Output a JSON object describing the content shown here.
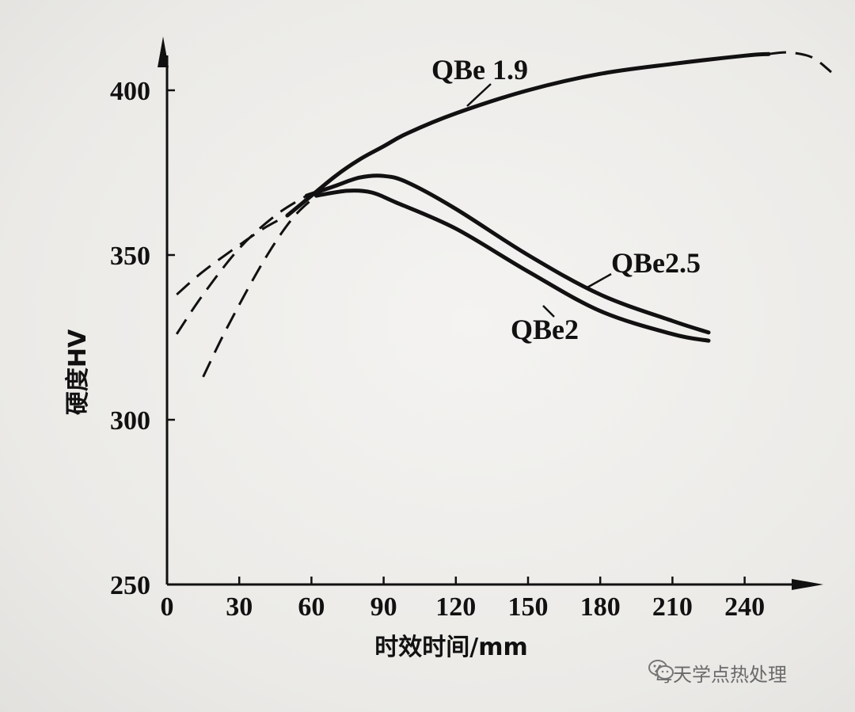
{
  "chart_data": {
    "type": "line",
    "xlabel": "时效时间/mm",
    "ylabel": "硬度HV",
    "xlim": [
      0,
      280
    ],
    "ylim": [
      250,
      415
    ],
    "x_ticks": [
      0,
      30,
      60,
      90,
      120,
      150,
      180,
      210,
      240
    ],
    "y_ticks": [
      250,
      300,
      350,
      400
    ],
    "grid": false,
    "series": [
      {
        "name": "QBe 1.9",
        "solid": [
          [
            50,
            362
          ],
          [
            60,
            368
          ],
          [
            70,
            374
          ],
          [
            80,
            379
          ],
          [
            90,
            383
          ],
          [
            100,
            387
          ],
          [
            120,
            393
          ],
          [
            150,
            400
          ],
          [
            180,
            405
          ],
          [
            210,
            408
          ],
          [
            240,
            410.5
          ],
          [
            250,
            411
          ]
        ],
        "dashed": [
          [
            4,
            338
          ],
          [
            15,
            345
          ],
          [
            30,
            353
          ],
          [
            40,
            358
          ],
          [
            50,
            362
          ]
        ],
        "dashed_end": [
          [
            250,
            411
          ],
          [
            258,
            411.5
          ],
          [
            268,
            410
          ],
          [
            276,
            405.5
          ]
        ]
      },
      {
        "name": "QBe2.5",
        "solid": [
          [
            58,
            368
          ],
          [
            70,
            371
          ],
          [
            80,
            373.5
          ],
          [
            90,
            374
          ],
          [
            100,
            372
          ],
          [
            120,
            364
          ],
          [
            150,
            350
          ],
          [
            180,
            338
          ],
          [
            210,
            330
          ],
          [
            225,
            326.5
          ]
        ],
        "dashed": [
          [
            4,
            326
          ],
          [
            15,
            338
          ],
          [
            30,
            352
          ],
          [
            45,
            362
          ],
          [
            58,
            368
          ]
        ]
      },
      {
        "name": "QBe2",
        "solid": [
          [
            62,
            368
          ],
          [
            75,
            369.5
          ],
          [
            85,
            369
          ],
          [
            95,
            366
          ],
          [
            120,
            358
          ],
          [
            150,
            345
          ],
          [
            180,
            333
          ],
          [
            210,
            326
          ],
          [
            225,
            324
          ]
        ],
        "dashed": [
          [
            15,
            313
          ],
          [
            25,
            328
          ],
          [
            40,
            348
          ],
          [
            52,
            361
          ],
          [
            62,
            368
          ]
        ]
      }
    ]
  },
  "watermark": {
    "icon": "wechat-icon",
    "text": "每天学点热处理"
  }
}
